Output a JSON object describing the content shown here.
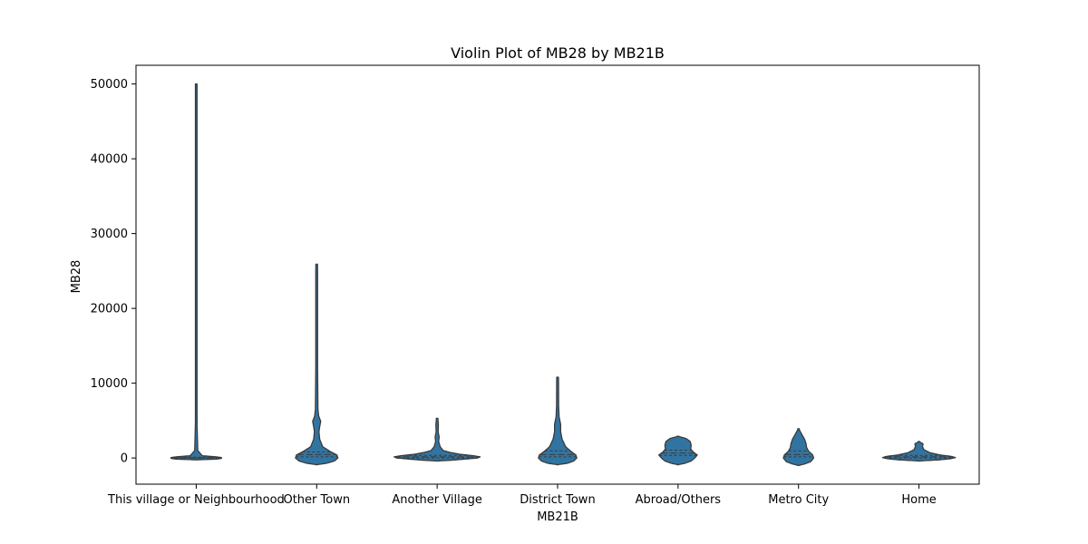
{
  "chart_data": {
    "type": "violin",
    "title": "Violin Plot of MB28 by MB21B",
    "xlabel": "MB21B",
    "ylabel": "MB28",
    "ylim": [
      -3500,
      52500
    ],
    "yticks": [
      0,
      10000,
      20000,
      30000,
      40000,
      50000
    ],
    "grid": false,
    "fill_color": "#3274a1",
    "edge_color": "#3b3b3b",
    "categories": [
      "This village or Neighbourhood",
      "Other Town",
      "Another Village",
      "District Town",
      "Abroad/Others",
      "Metro City",
      "Home"
    ],
    "violins": [
      {
        "min": -100,
        "max": 50000,
        "q1": 0,
        "median": 0,
        "q3": 100,
        "profile": [
          [
            -250,
            0.0
          ],
          [
            -150,
            0.4
          ],
          [
            -50,
            0.5
          ],
          [
            50,
            0.5
          ],
          [
            150,
            0.4
          ],
          [
            300,
            0.12
          ],
          [
            1000,
            0.03
          ],
          [
            5000,
            0.015
          ],
          [
            50000,
            0.01
          ]
        ]
      },
      {
        "min": -900,
        "max": 25900,
        "q1": 150,
        "median": 450,
        "q3": 800,
        "profile": [
          [
            -900,
            0.0
          ],
          [
            -700,
            0.2
          ],
          [
            -400,
            0.35
          ],
          [
            0,
            0.42
          ],
          [
            400,
            0.4
          ],
          [
            900,
            0.26
          ],
          [
            1500,
            0.12
          ],
          [
            2500,
            0.06
          ],
          [
            3500,
            0.045
          ],
          [
            4200,
            0.06
          ],
          [
            4900,
            0.08
          ],
          [
            5600,
            0.04
          ],
          [
            6500,
            0.025
          ],
          [
            12000,
            0.018
          ],
          [
            25900,
            0.018
          ]
        ]
      },
      {
        "min": -400,
        "max": 5300,
        "q1": 0,
        "median": 150,
        "q3": 350,
        "profile": [
          [
            -400,
            0.0
          ],
          [
            -300,
            0.28
          ],
          [
            -150,
            0.55
          ],
          [
            0,
            0.8
          ],
          [
            150,
            0.85
          ],
          [
            300,
            0.72
          ],
          [
            500,
            0.45
          ],
          [
            750,
            0.25
          ],
          [
            1000,
            0.12
          ],
          [
            1500,
            0.06
          ],
          [
            2200,
            0.03
          ],
          [
            2800,
            0.04
          ],
          [
            3500,
            0.02
          ],
          [
            4500,
            0.025
          ],
          [
            5300,
            0.012
          ]
        ]
      },
      {
        "min": -900,
        "max": 10800,
        "q1": 150,
        "median": 450,
        "q3": 950,
        "profile": [
          [
            -900,
            0.0
          ],
          [
            -700,
            0.2
          ],
          [
            -400,
            0.32
          ],
          [
            0,
            0.38
          ],
          [
            400,
            0.36
          ],
          [
            900,
            0.26
          ],
          [
            1500,
            0.16
          ],
          [
            2500,
            0.09
          ],
          [
            3500,
            0.06
          ],
          [
            4500,
            0.06
          ],
          [
            5500,
            0.03
          ],
          [
            7000,
            0.02
          ],
          [
            10800,
            0.018
          ]
        ]
      },
      {
        "min": -900,
        "max": 2900,
        "q1": 350,
        "median": 650,
        "q3": 1050,
        "profile": [
          [
            -900,
            0.0
          ],
          [
            -700,
            0.14
          ],
          [
            -400,
            0.26
          ],
          [
            0,
            0.33
          ],
          [
            400,
            0.38
          ],
          [
            800,
            0.3
          ],
          [
            1200,
            0.25
          ],
          [
            1700,
            0.26
          ],
          [
            2200,
            0.24
          ],
          [
            2600,
            0.16
          ],
          [
            2900,
            0.0
          ]
        ]
      },
      {
        "min": -1000,
        "max": 3900,
        "q1": 150,
        "median": 450,
        "q3": 950,
        "profile": [
          [
            -1000,
            0.0
          ],
          [
            -800,
            0.12
          ],
          [
            -500,
            0.24
          ],
          [
            0,
            0.3
          ],
          [
            400,
            0.28
          ],
          [
            900,
            0.2
          ],
          [
            1400,
            0.16
          ],
          [
            1900,
            0.15
          ],
          [
            2500,
            0.12
          ],
          [
            3100,
            0.07
          ],
          [
            3600,
            0.03
          ],
          [
            3900,
            0.0
          ]
        ]
      },
      {
        "min": -400,
        "max": 2200,
        "q1": 0,
        "median": 150,
        "q3": 350,
        "profile": [
          [
            -400,
            0.0
          ],
          [
            -250,
            0.4
          ],
          [
            -100,
            0.62
          ],
          [
            50,
            0.72
          ],
          [
            200,
            0.65
          ],
          [
            400,
            0.42
          ],
          [
            700,
            0.22
          ],
          [
            1100,
            0.1
          ],
          [
            1500,
            0.07
          ],
          [
            1900,
            0.08
          ],
          [
            2200,
            0.0
          ]
        ]
      }
    ]
  }
}
